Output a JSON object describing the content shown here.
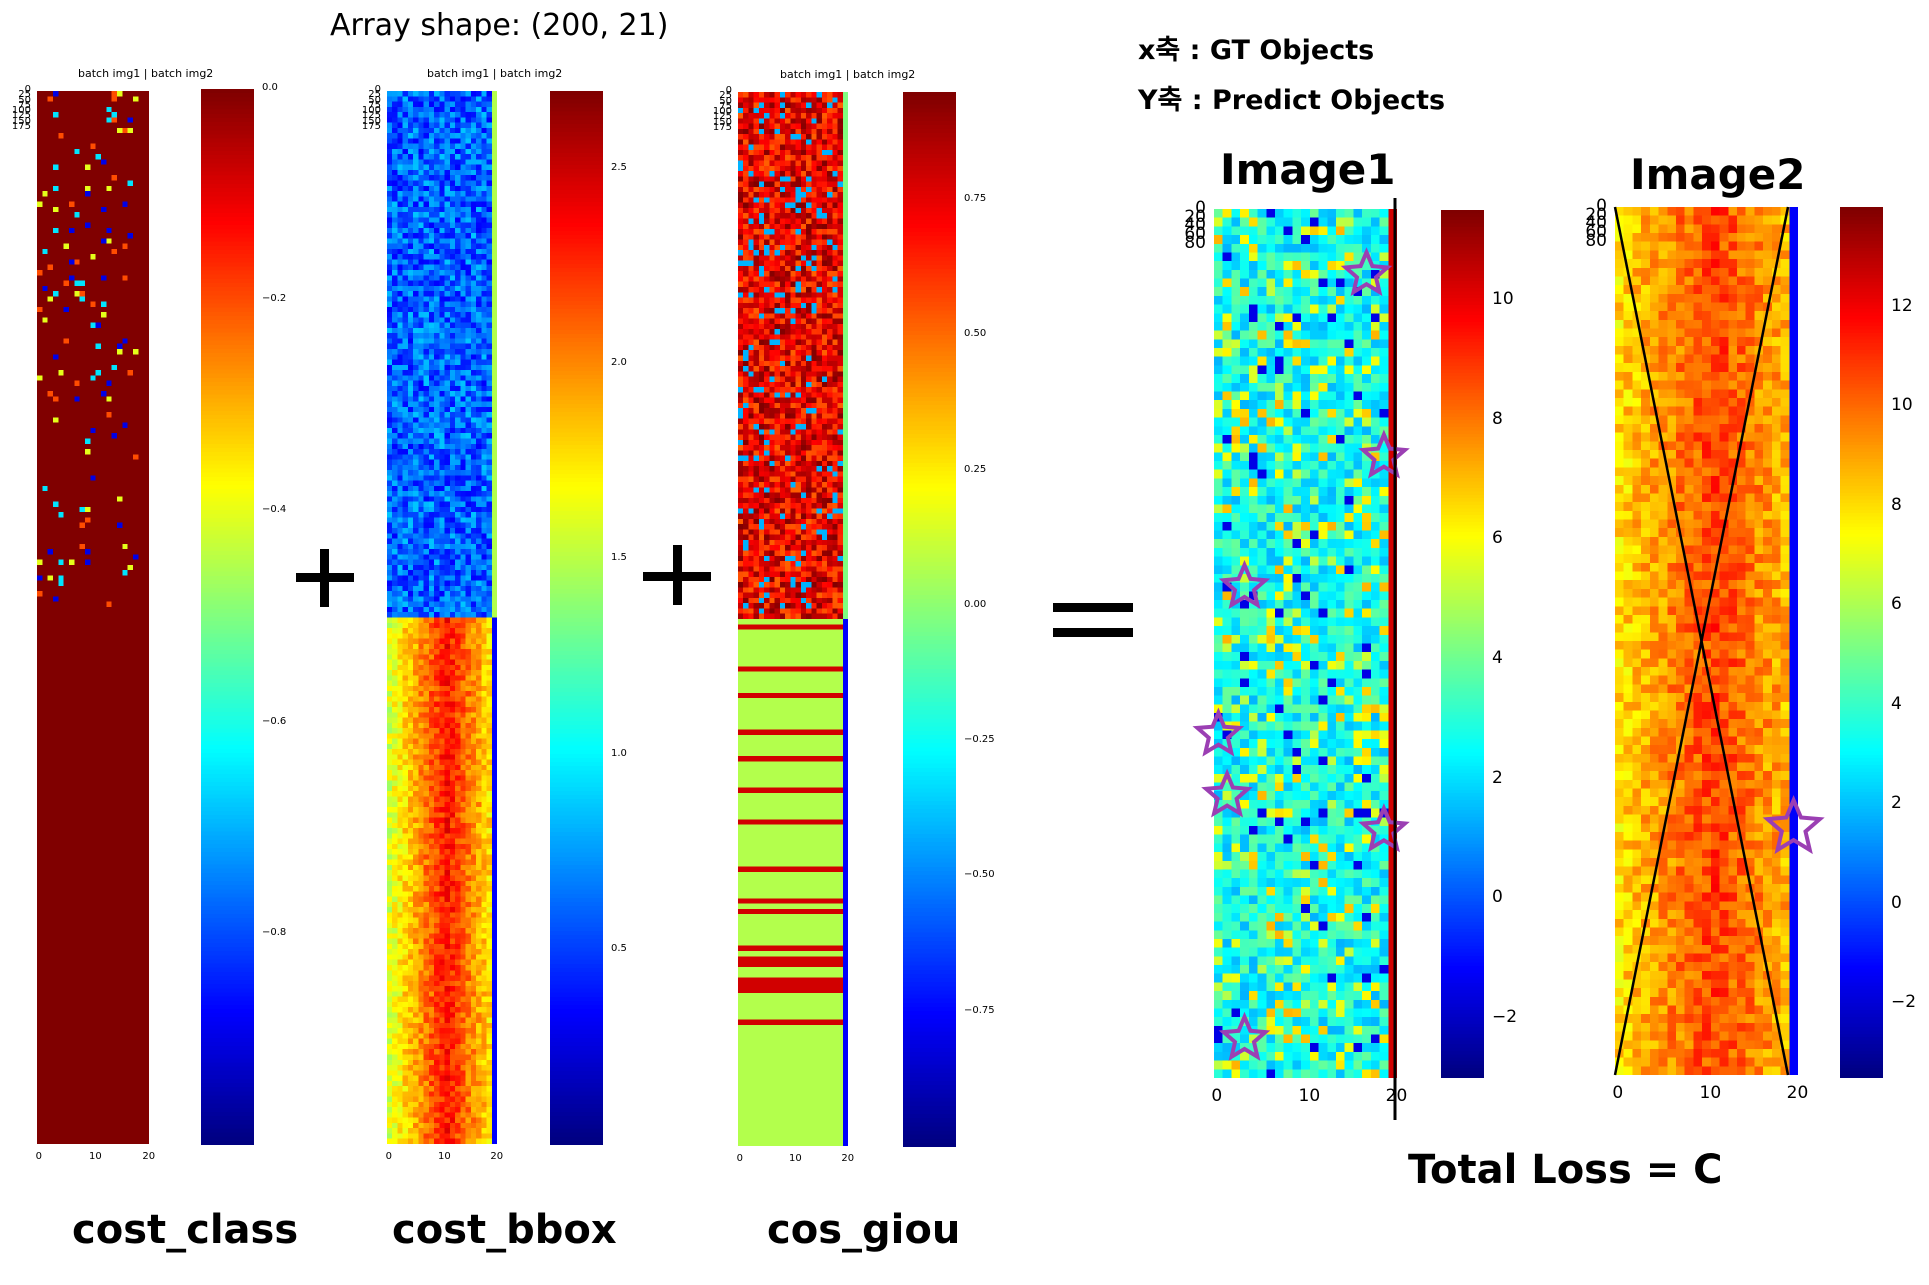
{
  "header": {
    "array_shape": "Array shape: (200, 21)",
    "x_axis_note": "x축 : GT Objects",
    "y_axis_note": "Y축 : Predict Objects"
  },
  "batch_label": "batch img1 | batch img2",
  "panels": [
    {
      "id": "cost_class",
      "label": "cost_class",
      "shape": [
        200,
        21
      ],
      "palette": "jet",
      "y_ticks": [
        "0",
        "25",
        "50",
        "75",
        "100",
        "125",
        "150",
        "175"
      ],
      "x_ticks": [
        "0",
        "10",
        "20"
      ],
      "colorbar_ticks": [
        "0.0",
        "−0.2",
        "−0.4",
        "−0.6",
        "−0.8"
      ],
      "colorbar_range": [
        -1.0,
        0.0
      ]
    },
    {
      "id": "cost_bbox",
      "label": "cost_bbox",
      "shape": [
        200,
        21
      ],
      "palette": "jet",
      "y_ticks": [
        "0",
        "25",
        "50",
        "75",
        "100",
        "125",
        "150",
        "175"
      ],
      "x_ticks": [
        "0",
        "10",
        "20"
      ],
      "colorbar_ticks": [
        "2.5",
        "2.0",
        "1.5",
        "1.0",
        "0.5"
      ],
      "colorbar_range": [
        0.0,
        2.7
      ]
    },
    {
      "id": "cos_giou",
      "label": "cos_giou",
      "shape": [
        200,
        21
      ],
      "palette": "jet",
      "y_ticks": [
        "0",
        "25",
        "50",
        "75",
        "100",
        "125",
        "150",
        "175"
      ],
      "x_ticks": [
        "0",
        "10",
        "20"
      ],
      "colorbar_ticks": [
        "0.75",
        "0.50",
        "0.25",
        "0.00",
        "−0.25",
        "−0.50",
        "−0.75"
      ],
      "colorbar_range": [
        -1.0,
        0.95
      ]
    }
  ],
  "operators": [
    "+",
    "+",
    "="
  ],
  "result_panels": [
    {
      "id": "image1",
      "title": "Image1",
      "shape": [
        100,
        21
      ],
      "y_ticks": [
        "0",
        "20",
        "40",
        "60",
        "80"
      ],
      "x_ticks": [
        "0",
        "10",
        "20"
      ],
      "colorbar_ticks": [
        "10",
        "8",
        "6",
        "4",
        "2",
        "0",
        "−2"
      ],
      "colorbar_range": [
        -3.0,
        11.5
      ],
      "star_cells": [
        [
          17,
          7
        ],
        [
          19,
          28
        ],
        [
          3,
          43
        ],
        [
          0,
          60
        ],
        [
          1,
          67
        ],
        [
          19,
          71
        ],
        [
          3,
          95
        ]
      ]
    },
    {
      "id": "image2",
      "title": "Image2",
      "shape": [
        100,
        21
      ],
      "y_ticks": [
        "0",
        "20",
        "40",
        "60",
        "80"
      ],
      "x_ticks": [
        "0",
        "10",
        "20"
      ],
      "colorbar_ticks": [
        "12",
        "10",
        "8",
        "6",
        "4",
        "2",
        "0",
        "−2"
      ],
      "colorbar_range": [
        -3.5,
        14.0
      ],
      "star_cells": [
        [
          20,
          71
        ]
      ],
      "crossed_out": true
    }
  ],
  "footer": {
    "total_loss": "Total Loss = C"
  },
  "colors": {
    "star": "#9b3fb3",
    "ink": "#000000"
  }
}
